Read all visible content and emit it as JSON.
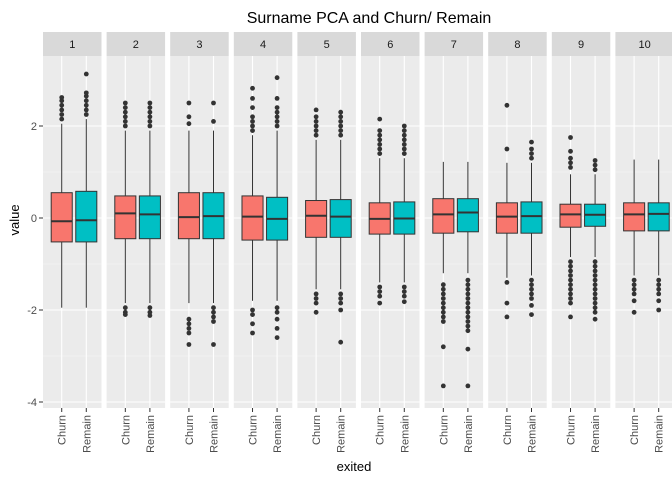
{
  "chart_data": {
    "type": "boxplot",
    "title": "Surname PCA and Churn/ Remain",
    "xlabel": "exited",
    "ylabel": "value",
    "categories": [
      "Churn",
      "Remain"
    ],
    "yticks": [
      2,
      0,
      -2,
      -4
    ],
    "ylim": [
      -4,
      3.3
    ],
    "grid": true,
    "colors": {
      "Churn": "#f8766d",
      "Remain": "#00bfc4"
    },
    "facets": [
      {
        "label": "1",
        "boxes": [
          {
            "category": "Churn",
            "min": -1.95,
            "q1": -0.52,
            "median": -0.07,
            "q3": 0.55,
            "max": 2.05,
            "outliers_low": [],
            "outliers_high": [
              2.15,
              2.25,
              2.35,
              2.45,
              2.55,
              2.62
            ]
          },
          {
            "category": "Remain",
            "min": -1.95,
            "q1": -0.52,
            "median": -0.05,
            "q3": 0.58,
            "max": 2.15,
            "outliers_low": [],
            "outliers_high": [
              2.25,
              2.35,
              2.45,
              2.55,
              2.65,
              2.72,
              3.13
            ]
          }
        ]
      },
      {
        "label": "2",
        "boxes": [
          {
            "category": "Churn",
            "min": -1.85,
            "q1": -0.45,
            "median": 0.1,
            "q3": 0.48,
            "max": 1.9,
            "outliers_low": [
              -1.95,
              -2.05,
              -2.1
            ],
            "outliers_high": [
              2.0,
              2.1,
              2.2,
              2.3,
              2.4,
              2.5
            ]
          },
          {
            "category": "Remain",
            "min": -1.85,
            "q1": -0.45,
            "median": 0.08,
            "q3": 0.48,
            "max": 1.9,
            "outliers_low": [
              -1.95,
              -2.05,
              -2.12
            ],
            "outliers_high": [
              2.0,
              2.1,
              2.2,
              2.3,
              2.4,
              2.5
            ]
          }
        ]
      },
      {
        "label": "3",
        "boxes": [
          {
            "category": "Churn",
            "min": -1.85,
            "q1": -0.45,
            "median": 0.02,
            "q3": 0.55,
            "max": 1.9,
            "outliers_low": [
              -2.2,
              -2.3,
              -2.4,
              -2.5,
              -2.75
            ],
            "outliers_high": [
              2.05,
              2.2,
              2.5
            ]
          },
          {
            "category": "Remain",
            "min": -1.85,
            "q1": -0.45,
            "median": 0.04,
            "q3": 0.55,
            "max": 1.9,
            "outliers_low": [
              -1.95,
              -2.05,
              -2.15,
              -2.25,
              -2.75
            ],
            "outliers_high": [
              2.1,
              2.5
            ]
          }
        ]
      },
      {
        "label": "4",
        "boxes": [
          {
            "category": "Churn",
            "min": -1.8,
            "q1": -0.48,
            "median": 0.03,
            "q3": 0.48,
            "max": 1.8,
            "outliers_low": [
              -2.0,
              -2.1,
              -2.3,
              -2.5
            ],
            "outliers_high": [
              1.9,
              2.0,
              2.1,
              2.2,
              2.4,
              2.6,
              2.82
            ]
          },
          {
            "category": "Remain",
            "min": -1.8,
            "q1": -0.48,
            "median": -0.02,
            "q3": 0.45,
            "max": 1.9,
            "outliers_low": [
              -1.95,
              -2.05,
              -2.2,
              -2.4,
              -2.6
            ],
            "outliers_high": [
              2.0,
              2.1,
              2.2,
              2.3,
              2.4,
              2.6,
              3.05
            ]
          }
        ]
      },
      {
        "label": "5",
        "boxes": [
          {
            "category": "Churn",
            "min": -1.55,
            "q1": -0.42,
            "median": 0.05,
            "q3": 0.38,
            "max": 1.7,
            "outliers_low": [
              -1.65,
              -1.75,
              -1.85,
              -2.05
            ],
            "outliers_high": [
              1.8,
              1.9,
              2.0,
              2.1,
              2.2,
              2.35
            ]
          },
          {
            "category": "Remain",
            "min": -1.55,
            "q1": -0.42,
            "median": 0.03,
            "q3": 0.4,
            "max": 1.7,
            "outliers_low": [
              -1.65,
              -1.75,
              -1.85,
              -2.0,
              -2.7
            ],
            "outliers_high": [
              1.8,
              1.9,
              2.0,
              2.1,
              2.2,
              2.3
            ]
          }
        ]
      },
      {
        "label": "6",
        "boxes": [
          {
            "category": "Churn",
            "min": -1.4,
            "q1": -0.35,
            "median": -0.02,
            "q3": 0.33,
            "max": 1.3,
            "outliers_low": [
              -1.5,
              -1.6,
              -1.7,
              -1.85
            ],
            "outliers_high": [
              1.4,
              1.5,
              1.6,
              1.7,
              1.8,
              1.9,
              2.15
            ]
          },
          {
            "category": "Remain",
            "min": -1.4,
            "q1": -0.35,
            "median": -0.01,
            "q3": 0.35,
            "max": 1.3,
            "outliers_low": [
              -1.5,
              -1.6,
              -1.7,
              -1.82
            ],
            "outliers_high": [
              1.4,
              1.5,
              1.6,
              1.7,
              1.8,
              1.9,
              2.0
            ]
          }
        ]
      },
      {
        "label": "7",
        "boxes": [
          {
            "category": "Churn",
            "min": -1.2,
            "q1": -0.33,
            "median": 0.08,
            "q3": 0.42,
            "max": 1.22,
            "outliers_low": [
              -1.45,
              -1.55,
              -1.65,
              -1.75,
              -1.85,
              -1.95,
              -2.05,
              -2.15,
              -2.25,
              -2.8,
              -3.65
            ],
            "outliers_high": []
          },
          {
            "category": "Remain",
            "min": -1.2,
            "q1": -0.3,
            "median": 0.12,
            "q3": 0.42,
            "max": 1.22,
            "outliers_low": [
              -1.35,
              -1.45,
              -1.55,
              -1.65,
              -1.75,
              -1.85,
              -1.95,
              -2.05,
              -2.15,
              -2.25,
              -2.35,
              -2.45,
              -2.85,
              -3.65
            ],
            "outliers_high": []
          }
        ]
      },
      {
        "label": "8",
        "boxes": [
          {
            "category": "Churn",
            "min": -1.3,
            "q1": -0.33,
            "median": 0.03,
            "q3": 0.33,
            "max": 1.2,
            "outliers_low": [
              -1.4,
              -1.85,
              -2.15
            ],
            "outliers_high": [
              1.5,
              2.45
            ]
          },
          {
            "category": "Remain",
            "min": -1.25,
            "q1": -0.33,
            "median": 0.04,
            "q3": 0.35,
            "max": 1.2,
            "outliers_low": [
              -1.35,
              -1.45,
              -1.55,
              -1.65,
              -1.75,
              -1.9,
              -2.1
            ],
            "outliers_high": [
              1.3,
              1.4,
              1.5,
              1.65
            ]
          }
        ]
      },
      {
        "label": "9",
        "boxes": [
          {
            "category": "Churn",
            "min": -0.85,
            "q1": -0.2,
            "median": 0.08,
            "q3": 0.3,
            "max": 0.95,
            "outliers_low": [
              -0.95,
              -1.05,
              -1.15,
              -1.25,
              -1.35,
              -1.45,
              -1.55,
              -1.65,
              -1.75,
              -1.85,
              -2.15
            ],
            "outliers_high": [
              1.1,
              1.2,
              1.3,
              1.45,
              1.75
            ]
          },
          {
            "category": "Remain",
            "min": -0.85,
            "q1": -0.18,
            "median": 0.07,
            "q3": 0.3,
            "max": 0.95,
            "outliers_low": [
              -0.95,
              -1.05,
              -1.15,
              -1.25,
              -1.35,
              -1.45,
              -1.55,
              -1.65,
              -1.75,
              -1.85,
              -1.95,
              -2.05,
              -2.2
            ],
            "outliers_high": [
              1.05,
              1.15,
              1.25
            ]
          }
        ]
      },
      {
        "label": "10",
        "boxes": [
          {
            "category": "Churn",
            "min": -1.25,
            "q1": -0.28,
            "median": 0.08,
            "q3": 0.33,
            "max": 1.27,
            "outliers_low": [
              -1.35,
              -1.45,
              -1.55,
              -1.65,
              -1.8,
              -2.05
            ],
            "outliers_high": []
          },
          {
            "category": "Remain",
            "min": -1.25,
            "q1": -0.28,
            "median": 0.09,
            "q3": 0.33,
            "max": 1.27,
            "outliers_low": [
              -1.35,
              -1.45,
              -1.55,
              -1.65,
              -1.8,
              -2.0
            ],
            "outliers_high": []
          }
        ]
      }
    ]
  }
}
